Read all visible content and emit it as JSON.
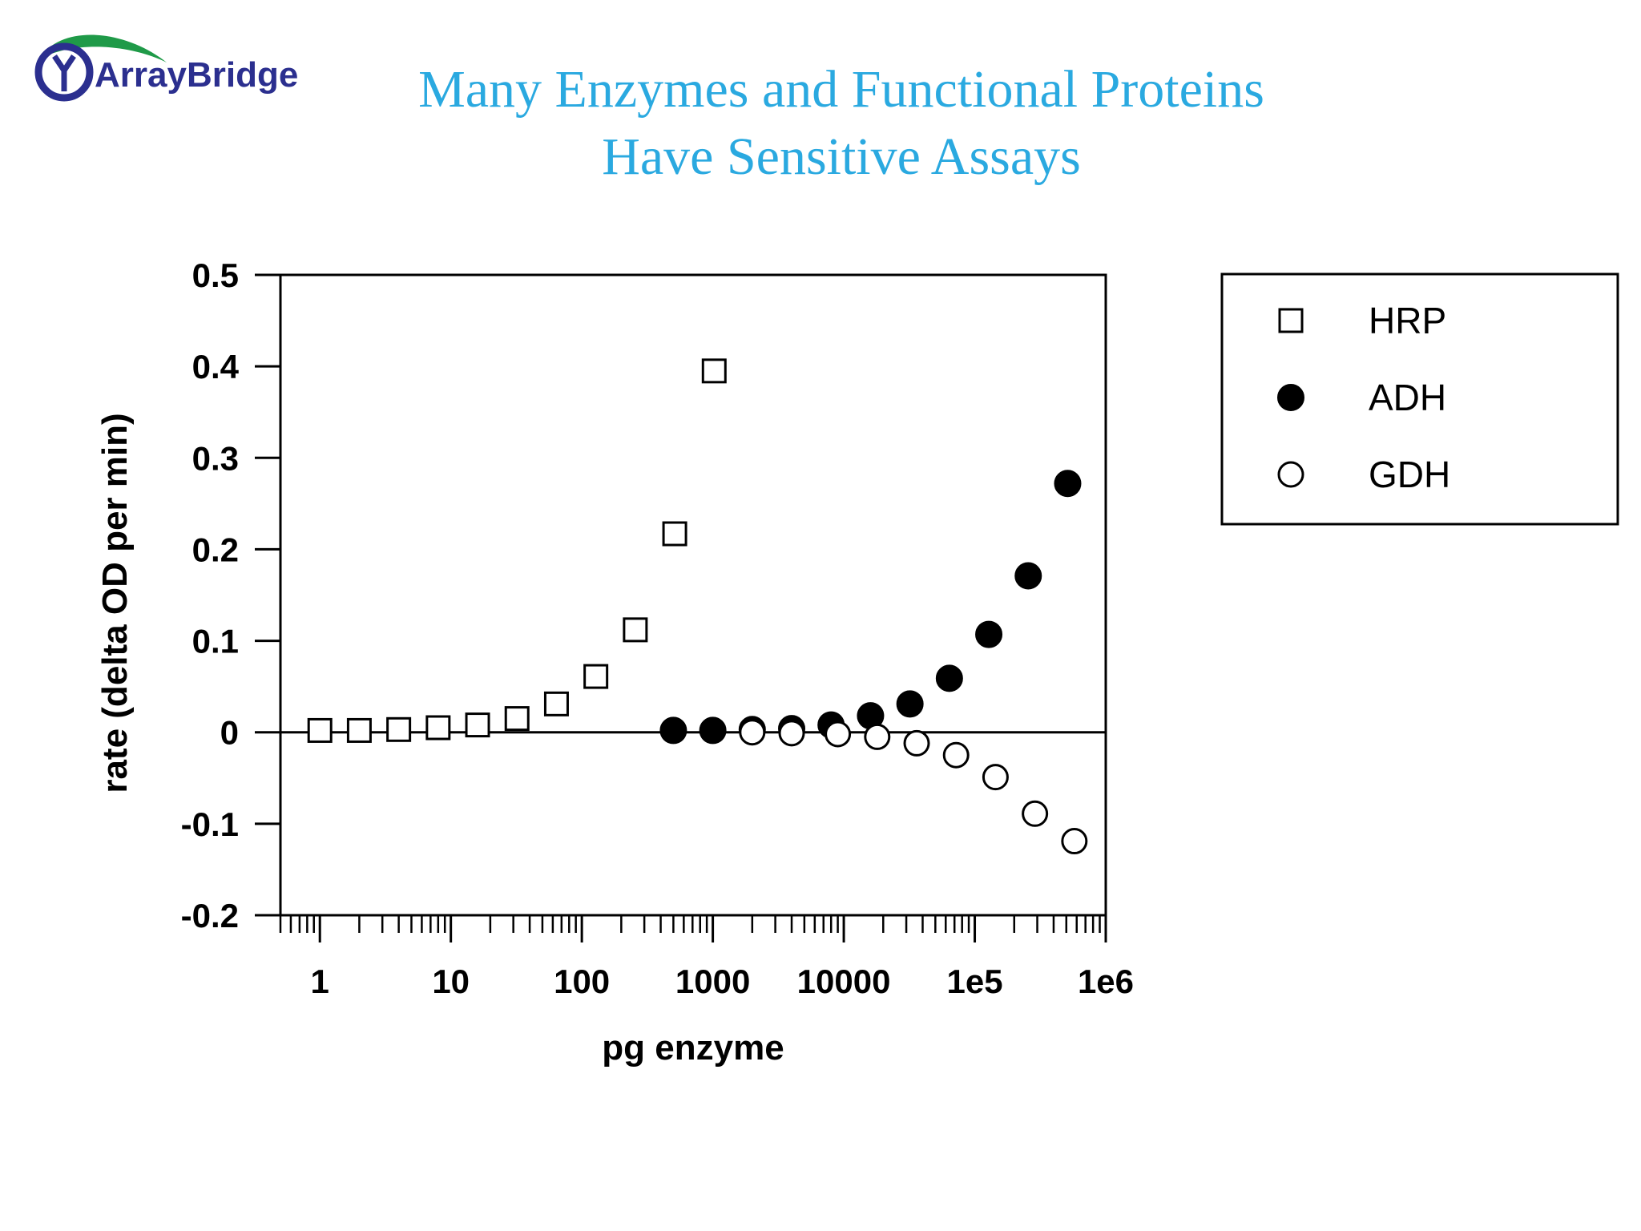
{
  "logo": {
    "text": "ArrayBridge",
    "colors": {
      "navy": "#2b2f8f",
      "green": "#1f9a48"
    }
  },
  "slide": {
    "title_line1": "Many Enzymes and Functional Proteins",
    "title_line2": "Have Sensitive Assays",
    "title_color": "#2aa9e0"
  },
  "chart_data": {
    "type": "scatter",
    "xlabel": "pg enzyme",
    "ylabel": "rate (delta OD per min)",
    "xscale": "log",
    "xlim": [
      0.5,
      1000000
    ],
    "ylim": [
      -0.2,
      0.5
    ],
    "xticks": [
      {
        "value": 1,
        "label": "1"
      },
      {
        "value": 10,
        "label": "10"
      },
      {
        "value": 100,
        "label": "100"
      },
      {
        "value": 1000,
        "label": "1000"
      },
      {
        "value": 10000,
        "label": "10000"
      },
      {
        "value": 100000,
        "label": "1e5"
      },
      {
        "value": 1000000,
        "label": "1e6"
      }
    ],
    "yticks": [
      {
        "value": 0.5,
        "label": "0.5"
      },
      {
        "value": 0.4,
        "label": "0.4"
      },
      {
        "value": 0.3,
        "label": "0.3"
      },
      {
        "value": 0.2,
        "label": "0.2"
      },
      {
        "value": 0.1,
        "label": "0.1"
      },
      {
        "value": 0,
        "label": "0"
      },
      {
        "value": -0.1,
        "label": "-0.1"
      },
      {
        "value": -0.2,
        "label": "-0.2"
      }
    ],
    "zero_line": true,
    "legend_position": "right",
    "series": [
      {
        "name": "HRP",
        "marker": "open-square",
        "x": [
          1,
          2,
          4,
          8,
          16,
          32,
          64,
          128,
          256,
          512,
          1024
        ],
        "y": [
          0.002,
          0.002,
          0.003,
          0.005,
          0.008,
          0.015,
          0.031,
          0.061,
          0.112,
          0.217,
          0.395
        ]
      },
      {
        "name": "ADH",
        "marker": "filled-circle",
        "x": [
          500,
          1000,
          2000,
          4000,
          8000,
          16000,
          32000,
          64000,
          128000,
          256000,
          512000
        ],
        "y": [
          0.002,
          0.002,
          0.003,
          0.004,
          0.008,
          0.018,
          0.031,
          0.059,
          0.107,
          0.171,
          0.272
        ]
      },
      {
        "name": "GDH",
        "marker": "open-circle",
        "x": [
          2000,
          4000,
          9000,
          18000,
          36000,
          72000,
          144000,
          288000,
          576000
        ],
        "y": [
          0,
          -0.001,
          -0.002,
          -0.005,
          -0.012,
          -0.025,
          -0.049,
          -0.089,
          -0.119
        ]
      }
    ]
  }
}
